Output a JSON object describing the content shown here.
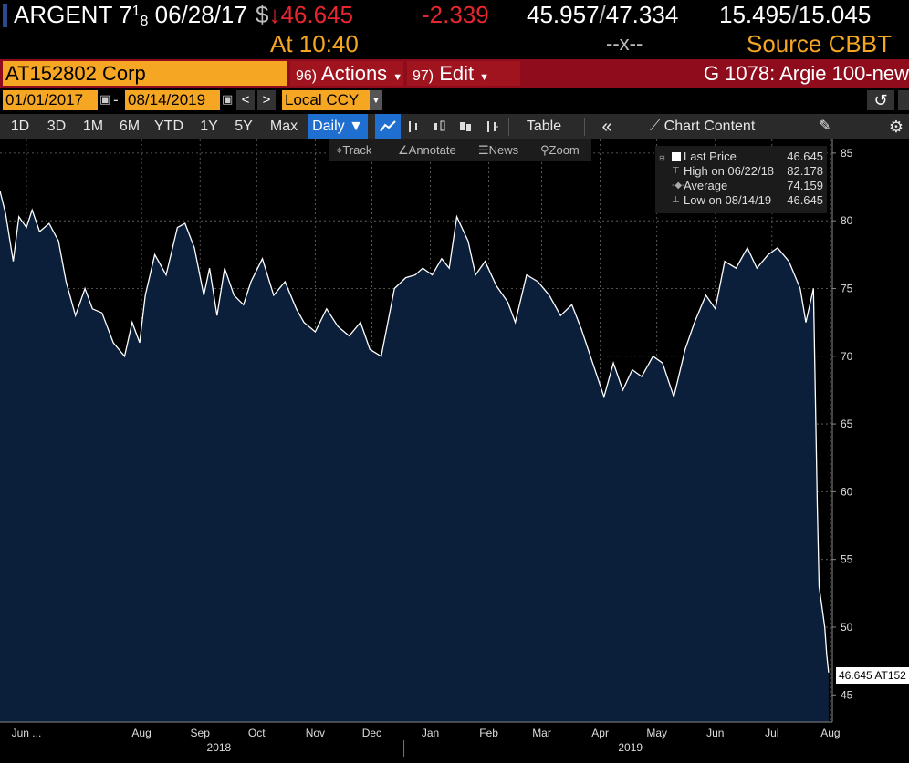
{
  "quote": {
    "ticker": "ARGENT",
    "coupon_whole": "7",
    "coupon_num": "1",
    "coupon_den": "8",
    "maturity": "06/28/17",
    "price_prefix": "$",
    "price_arrow": "↓",
    "price": "46.645",
    "change": "-2.339",
    "bid": "45.957",
    "ask": "47.334",
    "yield_bid": "15.495",
    "yield_ask": "15.045",
    "time_label": "At 10:40",
    "cross": "--x--",
    "source": "Source CBBT"
  },
  "row2": {
    "security": "AT152802 Corp",
    "actions_num": "96)",
    "actions_label": "Actions",
    "edit_num": "97)",
    "edit_label": "Edit",
    "group": "G 1078: Argie 100-new"
  },
  "row3": {
    "start_date": "01/01/2017",
    "separator": "-",
    "end_date": "08/14/2019",
    "prev": "<",
    "next": ">",
    "currency": "Local CCY",
    "undo_icon": "↺"
  },
  "toolbar": {
    "periods": [
      "1D",
      "3D",
      "1M",
      "6M",
      "YTD",
      "1Y",
      "5Y",
      "Max"
    ],
    "frequency": "Daily ▼",
    "table": "Table",
    "collapse": "«",
    "chart_content": "Chart Content"
  },
  "tools": {
    "track": "Track",
    "annotate": "Annotate",
    "news": "News",
    "zoom": "Zoom"
  },
  "legend": {
    "last_label": "Last Price",
    "last_value": "46.645",
    "high_label": "High on 06/22/18",
    "high_value": "82.178",
    "avg_label": "Average",
    "avg_value": "74.159",
    "low_label": "Low on 08/14/19",
    "low_value": "46.645"
  },
  "last_tag": "46.645 AT152",
  "colors": {
    "fill": "#0b1f3a",
    "line": "#ffffff",
    "grid": "#6a6a6a",
    "accent": "#f5a623",
    "down": "#e8262f"
  },
  "chart_data": {
    "type": "area",
    "series_name": "Last Price",
    "ylim": [
      43,
      86
    ],
    "y_ticks": [
      45,
      50,
      55,
      60,
      65,
      70,
      75,
      80,
      85
    ],
    "x_start": "2018-06-01",
    "x_end": "2019-08-16",
    "month_ticks": [
      {
        "date": "2018-06-15",
        "label": "Jun ..."
      },
      {
        "date": "2018-08-15",
        "label": "Aug"
      },
      {
        "date": "2018-09-15",
        "label": "Sep"
      },
      {
        "date": "2018-10-15",
        "label": "Oct"
      },
      {
        "date": "2018-11-15",
        "label": "Nov"
      },
      {
        "date": "2018-12-15",
        "label": "Dec"
      },
      {
        "date": "2019-01-15",
        "label": "Jan"
      },
      {
        "date": "2019-02-15",
        "label": "Feb"
      },
      {
        "date": "2019-03-15",
        "label": "Mar"
      },
      {
        "date": "2019-04-15",
        "label": "Apr"
      },
      {
        "date": "2019-05-15",
        "label": "May"
      },
      {
        "date": "2019-06-15",
        "label": "Jun"
      },
      {
        "date": "2019-07-15",
        "label": "Jul"
      },
      {
        "date": "2019-08-15",
        "label": "Aug"
      }
    ],
    "year_labels": [
      {
        "date": "2018-09-25",
        "label": "2018"
      },
      {
        "date": "2019-05-01",
        "label": "2019"
      }
    ],
    "x": [
      "2018-06-01",
      "2018-06-04",
      "2018-06-08",
      "2018-06-11",
      "2018-06-15",
      "2018-06-18",
      "2018-06-22",
      "2018-06-27",
      "2018-07-02",
      "2018-07-06",
      "2018-07-11",
      "2018-07-16",
      "2018-07-20",
      "2018-07-25",
      "2018-07-31",
      "2018-08-06",
      "2018-08-10",
      "2018-08-14",
      "2018-08-17",
      "2018-08-22",
      "2018-08-28",
      "2018-09-03",
      "2018-09-07",
      "2018-09-12",
      "2018-09-17",
      "2018-09-20",
      "2018-09-24",
      "2018-09-28",
      "2018-10-03",
      "2018-10-08",
      "2018-10-12",
      "2018-10-18",
      "2018-10-24",
      "2018-10-30",
      "2018-11-05",
      "2018-11-09",
      "2018-11-15",
      "2018-11-21",
      "2018-11-27",
      "2018-12-03",
      "2018-12-09",
      "2018-12-14",
      "2018-12-20",
      "2018-12-27",
      "2019-01-02",
      "2019-01-07",
      "2019-01-11",
      "2019-01-16",
      "2019-01-21",
      "2019-01-25",
      "2019-01-29",
      "2019-02-04",
      "2019-02-08",
      "2019-02-13",
      "2019-02-19",
      "2019-02-25",
      "2019-03-01",
      "2019-03-07",
      "2019-03-13",
      "2019-03-19",
      "2019-03-25",
      "2019-03-31",
      "2019-04-05",
      "2019-04-11",
      "2019-04-17",
      "2019-04-22",
      "2019-04-27",
      "2019-05-02",
      "2019-05-07",
      "2019-05-13",
      "2019-05-18",
      "2019-05-24",
      "2019-05-30",
      "2019-06-04",
      "2019-06-10",
      "2019-06-15",
      "2019-06-20",
      "2019-06-26",
      "2019-07-02",
      "2019-07-07",
      "2019-07-13",
      "2019-07-18",
      "2019-07-24",
      "2019-07-30",
      "2019-08-02",
      "2019-08-06",
      "2019-08-08",
      "2019-08-09",
      "2019-08-12",
      "2019-08-13",
      "2019-08-14"
    ],
    "values": [
      82.2,
      80.5,
      77.0,
      80.3,
      79.5,
      80.8,
      79.2,
      79.8,
      78.5,
      75.5,
      73.0,
      75.0,
      73.5,
      73.2,
      71.0,
      70.0,
      72.5,
      71.0,
      74.5,
      77.5,
      76.0,
      79.5,
      79.8,
      78.0,
      74.5,
      76.5,
      73.0,
      76.5,
      74.5,
      73.8,
      75.5,
      77.2,
      74.5,
      75.5,
      73.5,
      72.5,
      71.8,
      73.5,
      72.2,
      71.5,
      72.5,
      70.5,
      70.0,
      75.0,
      75.8,
      76.0,
      76.5,
      76.0,
      77.2,
      76.5,
      80.3,
      78.5,
      76.0,
      77.0,
      75.2,
      74.0,
      72.5,
      76.0,
      75.5,
      74.5,
      73.0,
      73.8,
      72.0,
      69.5,
      67.0,
      69.5,
      67.5,
      69.0,
      68.5,
      70.0,
      69.5,
      67.0,
      70.5,
      72.5,
      74.5,
      73.5,
      77.0,
      76.5,
      78.0,
      76.5,
      77.5,
      78.0,
      77.0,
      75.0,
      72.5,
      75.0,
      59.0,
      53.0,
      50.0,
      48.0,
      46.645
    ]
  }
}
